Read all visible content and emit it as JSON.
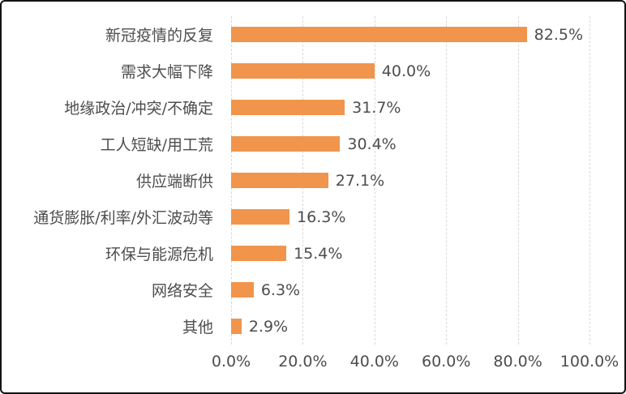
{
  "chart_data": {
    "type": "bar",
    "orientation": "horizontal",
    "title": "",
    "xlabel": "",
    "ylabel": "",
    "categories": [
      "新冠疫情的反复",
      "需求大幅下降",
      "地缘政治/冲突/不确定",
      "工人短缺/用工荒",
      "供应端断供",
      "通货膨胀/利率/外汇波动等",
      "环保与能源危机",
      "网络安全",
      "其他"
    ],
    "values": [
      82.5,
      40.0,
      31.7,
      30.4,
      27.1,
      16.3,
      15.4,
      6.3,
      2.9
    ],
    "data_labels": [
      "82.5%",
      "40.0%",
      "31.7%",
      "30.4%",
      "27.1%",
      "16.3%",
      "15.4%",
      "6.3%",
      "2.9%"
    ],
    "x_ticks": [
      {
        "value": 0,
        "label": "0.0%"
      },
      {
        "value": 20,
        "label": "20.0%"
      },
      {
        "value": 40,
        "label": "40.0%"
      },
      {
        "value": 60,
        "label": "60.0%"
      },
      {
        "value": 80,
        "label": "80.0%"
      },
      {
        "value": 100,
        "label": "100.0%"
      }
    ],
    "xlim": [
      0,
      100
    ],
    "grid": "vertical-dashed",
    "legend": "none",
    "colors": {
      "bar": "#F0954B",
      "text": "#4D4D4D",
      "gridline": "#D9D9D9",
      "frame_border": "#141414",
      "background": "#FFFFFF"
    }
  }
}
